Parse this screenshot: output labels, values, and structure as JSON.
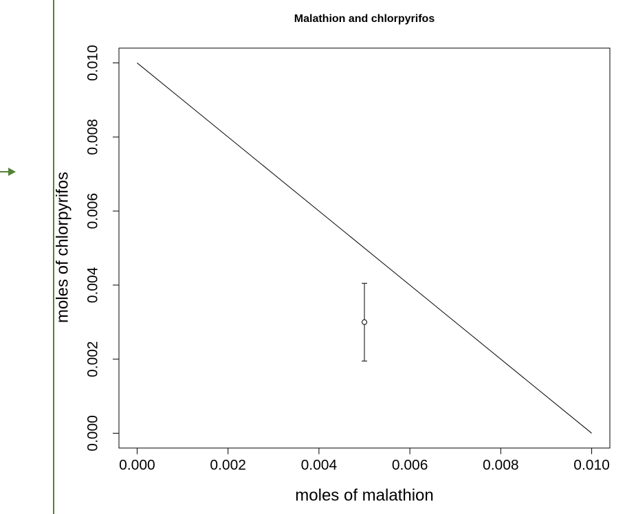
{
  "chart_data": {
    "type": "scatter",
    "title": "Malathion and chlorpyrifos",
    "xlabel": "moles of malathion",
    "ylabel": "moles of chlorpyrifos",
    "xlim": [
      -0.0004,
      0.0104
    ],
    "ylim": [
      -0.0004,
      0.0104
    ],
    "xticks": [
      {
        "value": 0,
        "label": "0.000"
      },
      {
        "value": 0.002,
        "label": "0.002"
      },
      {
        "value": 0.004,
        "label": "0.004"
      },
      {
        "value": 0.006,
        "label": "0.006"
      },
      {
        "value": 0.008,
        "label": "0.008"
      },
      {
        "value": 0.01,
        "label": "0.010"
      }
    ],
    "yticks": [
      {
        "value": 0,
        "label": "0.000"
      },
      {
        "value": 0.002,
        "label": "0.002"
      },
      {
        "value": 0.004,
        "label": "0.004"
      },
      {
        "value": 0.006,
        "label": "0.006"
      },
      {
        "value": 0.008,
        "label": "0.008"
      },
      {
        "value": 0.01,
        "label": "0.010"
      }
    ],
    "x": [
      0.005
    ],
    "values": [
      0.003
    ],
    "yerr": [
      0.00105
    ],
    "color": "#000000",
    "line": {
      "x": [
        0,
        0.01
      ],
      "values": [
        0.01,
        0
      ]
    }
  }
}
